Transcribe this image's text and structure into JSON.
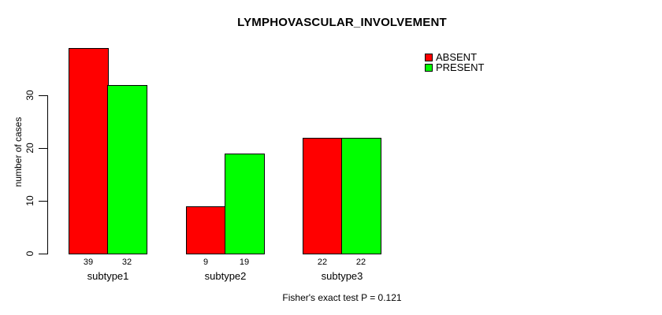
{
  "title": "LYMPHOVASCULAR_INVOLVEMENT",
  "annotation": "Fisher's exact test P = 0.121",
  "chart_data": {
    "type": "bar",
    "title": "LYMPHOVASCULAR_INVOLVEMENT",
    "categories": [
      "subtype1",
      "subtype2",
      "subtype3"
    ],
    "series": [
      {
        "name": "ABSENT",
        "color": "#FF0000",
        "values": [
          39,
          9,
          22
        ]
      },
      {
        "name": "PRESENT",
        "color": "#00FF00",
        "values": [
          32,
          19,
          22
        ]
      }
    ],
    "xlabel": "",
    "ylabel": "number of cases",
    "yticks": [
      0,
      10,
      20,
      30
    ],
    "ylim": [
      0,
      40
    ],
    "show_value_labels": true,
    "value_labels": [
      [
        "39",
        "9",
        "22"
      ],
      [
        "32",
        "19",
        "22"
      ]
    ],
    "legend": {
      "position": "top-right",
      "entries": [
        "ABSENT",
        "PRESENT"
      ]
    },
    "grid": false,
    "bar_border_color": "#000000",
    "background_color": "#FFFFFF",
    "text_color": "#000000"
  }
}
